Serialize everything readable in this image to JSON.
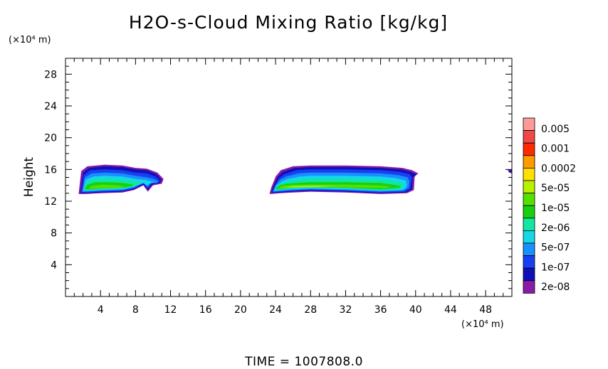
{
  "chart_data": {
    "type": "heatmap",
    "title": "H2O-s-Cloud Mixing Ratio [kg/kg]",
    "ylabel": "Height",
    "x_unit": "(×10⁴ m)",
    "y_unit": "(×10⁴ m)",
    "xlim": [
      0,
      51
    ],
    "ylim": [
      0,
      30
    ],
    "x_ticks": [
      4,
      8,
      12,
      16,
      20,
      24,
      28,
      32,
      36,
      40,
      44,
      48
    ],
    "y_ticks": [
      4,
      8,
      12,
      16,
      20,
      24,
      28
    ],
    "colorbar": {
      "levels": [
        "0.005",
        "0.001",
        "0.0002",
        "5e-05",
        "1e-05",
        "2e-06",
        "5e-07",
        "1e-07",
        "2e-08"
      ],
      "colors_top_to_bottom": [
        "#ff9a9a",
        "#f04848",
        "#ff2a00",
        "#ff9a00",
        "#ffe000",
        "#b8f000",
        "#56e000",
        "#18d010",
        "#10e8a0",
        "#14d8e8",
        "#1890ff",
        "#1840f0",
        "#1010b8",
        "#8a1aa8"
      ]
    },
    "cloud_regions": [
      {
        "x_range": [
          1.5,
          11.2
        ],
        "y_range": [
          12.9,
          16.6
        ]
      },
      {
        "x_range": [
          23.3,
          40.3
        ],
        "y_range": [
          12.9,
          16.5
        ]
      },
      {
        "x_range": [
          50.5,
          51
        ],
        "y_range": [
          15.5,
          16.0
        ]
      }
    ],
    "footer": "TIME  =  1007808.0"
  }
}
